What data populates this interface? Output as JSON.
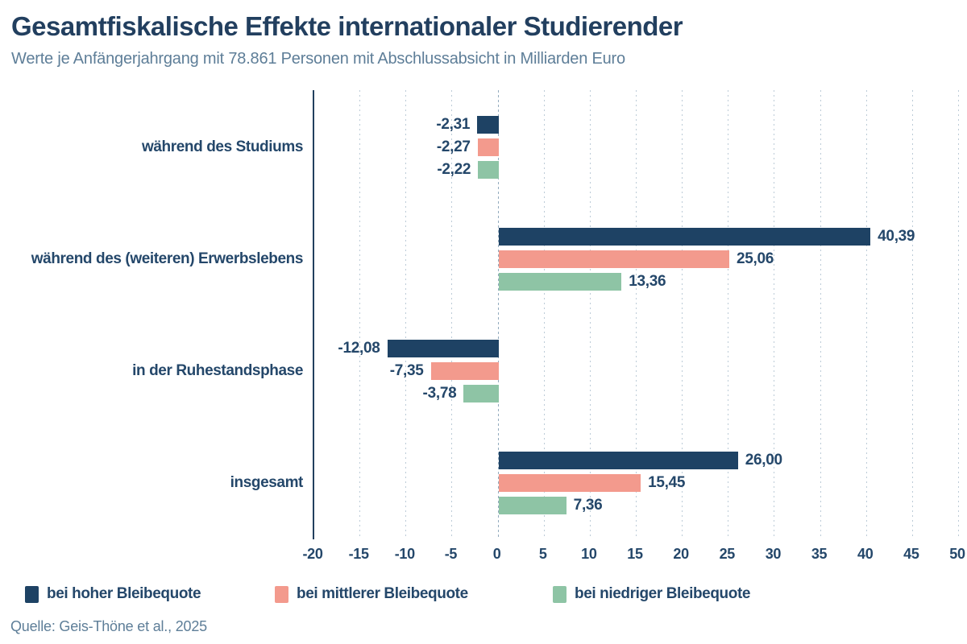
{
  "header": {
    "title": "Gesamtfiskalische Effekte internationaler Studierender",
    "subtitle": "Werte je Anfängerjahrgang mit 78.861 Personen mit Abschlussabsicht in Milliarden Euro"
  },
  "chart_data": {
    "type": "bar",
    "orientation": "horizontal",
    "title": "Gesamtfiskalische Effekte internationaler Studierender",
    "subtitle": "Werte je Anfängerjahrgang mit 78.861 Personen mit Abschlussabsicht in Milliarden Euro",
    "unit": "Milliarden Euro",
    "categories": [
      "während des Studiums",
      "während des (weiteren) Erwerbslebens",
      "in der Ruhestandsphase",
      "insgesamt"
    ],
    "series": [
      {
        "name": "bei hoher Bleibequote",
        "color": "#1e4264",
        "values": [
          -2.31,
          40.39,
          -12.08,
          26.0
        ],
        "labels": [
          "-2,31",
          "40,39",
          "-12,08",
          "26,00"
        ]
      },
      {
        "name": "bei mittlerer Bleibequote",
        "color": "#f39a8d",
        "values": [
          -2.27,
          25.06,
          -7.35,
          15.45
        ],
        "labels": [
          "-2,27",
          "25,06",
          "-7,35",
          "15,45"
        ]
      },
      {
        "name": "bei niedriger Bleibequote",
        "color": "#8ec4a5",
        "values": [
          -2.22,
          13.36,
          -3.78,
          7.36
        ],
        "labels": [
          "-2,22",
          "13,36",
          "-3,78",
          "7,36"
        ]
      }
    ],
    "xlim": [
      -20,
      50
    ],
    "xticks": [
      -20,
      -15,
      -10,
      -5,
      0,
      5,
      10,
      15,
      20,
      25,
      30,
      35,
      40,
      45,
      50
    ],
    "grid": "vertical-dashed",
    "legend_position": "bottom",
    "colors": {
      "text_navy": "#24476a",
      "title_navy": "#223f5f",
      "muted_blue": "#5e7e98",
      "gridline": "#bccbd7",
      "zero_line": "#93abbe",
      "axis_line": "#22405e"
    }
  },
  "footer": {
    "source": "Quelle: Geis-Thöne et al., 2025"
  }
}
